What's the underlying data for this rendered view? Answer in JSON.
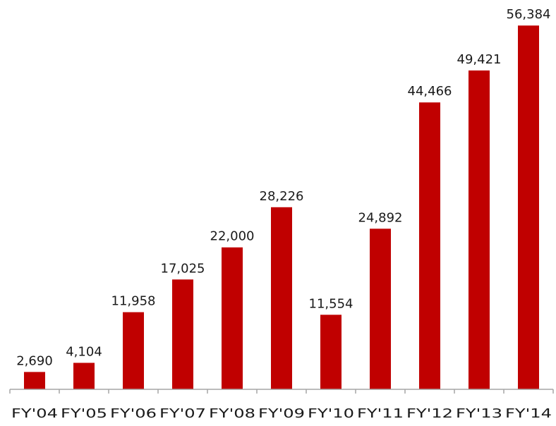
{
  "chart_data": {
    "type": "bar",
    "title": "",
    "xlabel": "",
    "ylabel": "",
    "categories": [
      "FY'04",
      "FY'05",
      "FY'06",
      "FY'07",
      "FY'08",
      "FY'09",
      "FY'10",
      "FY'11",
      "FY'12",
      "FY'13",
      "FY'14"
    ],
    "values": [
      2690,
      4104,
      11958,
      17025,
      22000,
      28226,
      11554,
      24892,
      44466,
      49421,
      56384
    ],
    "value_labels": [
      "2,690",
      "4,104",
      "11,958",
      "17,025",
      "22,000",
      "28,226",
      "11,554",
      "24,892",
      "44,466",
      "49,421",
      "56,384"
    ],
    "ylim": [
      0,
      57500
    ],
    "grid": false,
    "legend": "none",
    "bar_color": "#c00000",
    "axis_color": "#a6a6a6"
  }
}
